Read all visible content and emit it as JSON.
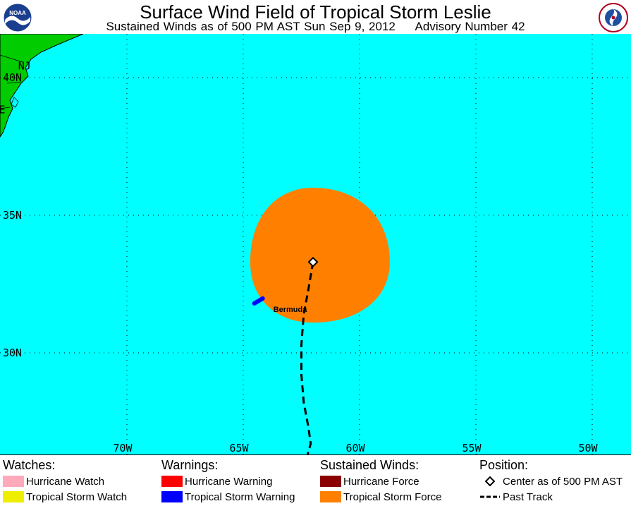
{
  "header": {
    "title": "Surface Wind Field of Tropical Storm Leslie",
    "subtitle": "Sustained Winds as of 500 PM AST Sun Sep 9, 2012     Advisory Number 42",
    "left_logo_text": "NOAA",
    "right_logo_text": "National Weather Service"
  },
  "map": {
    "ocean_color": "#00ffff",
    "land_color": "#00cc00",
    "lat_labels": [
      {
        "label": "40N",
        "lat": 40
      },
      {
        "label": "35N",
        "lat": 35
      },
      {
        "label": "30N",
        "lat": 30
      }
    ],
    "lon_labels": [
      {
        "label": "70W",
        "lon": -70
      },
      {
        "label": "65W",
        "lon": -65
      },
      {
        "label": "60W",
        "lon": -60
      },
      {
        "label": "55W",
        "lon": -55
      },
      {
        "label": "50W",
        "lon": -50
      }
    ],
    "state_labels": [
      {
        "label": "NJ",
        "lat": 40.3,
        "lon": -74.4
      },
      {
        "label": "DE",
        "lat": 38.7,
        "lon": -75.5
      }
    ],
    "place_labels": [
      {
        "label": "Bermuda",
        "lat": 31.9,
        "lon": -64.1
      }
    ],
    "storm_center": {
      "lat": 33.3,
      "lon": -62.0
    },
    "tropical_storm_force_radius_deg": {
      "north": 2.7,
      "east": 3.3,
      "south": 2.2,
      "west": 2.7
    },
    "past_track": [
      {
        "lat": 33.3,
        "lon": -62.0
      },
      {
        "lat": 32.3,
        "lon": -62.2
      },
      {
        "lat": 31.4,
        "lon": -62.4
      },
      {
        "lat": 30.3,
        "lon": -62.5
      },
      {
        "lat": 29.2,
        "lon": -62.5
      },
      {
        "lat": 28.2,
        "lon": -62.4
      },
      {
        "lat": 27.3,
        "lon": -62.2
      },
      {
        "lat": 26.7,
        "lon": -62.1
      },
      {
        "lat": 26.1,
        "lon": -62.3
      }
    ]
  },
  "legend": {
    "watches": {
      "heading": "Watches:",
      "items": [
        {
          "label": "Hurricane Watch",
          "color": "#ffaabb"
        },
        {
          "label": "Tropical Storm Watch",
          "color": "#eeee00"
        }
      ]
    },
    "warnings": {
      "heading": "Warnings:",
      "items": [
        {
          "label": "Hurricane Warning",
          "color": "#ff0000"
        },
        {
          "label": "Tropical Storm Warning",
          "color": "#0000ff"
        }
      ]
    },
    "winds": {
      "heading": "Sustained Winds:",
      "items": [
        {
          "label": "Hurricane Force",
          "color": "#8b0000"
        },
        {
          "label": "Tropical Storm Force",
          "color": "#ff8000"
        }
      ]
    },
    "position": {
      "heading": "Position:",
      "center_label": "Center as of 500 PM AST",
      "track_label": "Past Track"
    }
  }
}
